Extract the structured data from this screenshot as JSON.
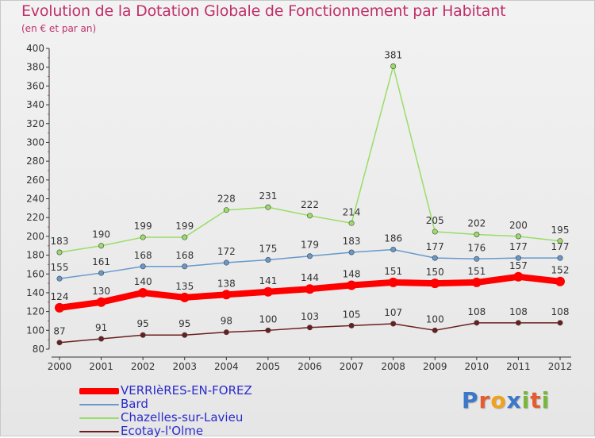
{
  "header": {
    "title": "Evolution de la Dotation Globale de Fonctionnement par Habitant",
    "subtitle": "(en € et par an)"
  },
  "logo": {
    "text": "Proxiti",
    "letters": [
      "P",
      "r",
      "o",
      "x",
      "i",
      "t",
      "i"
    ],
    "colors": [
      "#3b78c9",
      "#e35d2f",
      "#f0a21b",
      "#3b78c9",
      "#77b83a",
      "#e35d2f",
      "#77b83a"
    ]
  },
  "chart_data": {
    "type": "line",
    "title": "Evolution de la Dotation Globale de Fonctionnement par Habitant",
    "subtitle": "(en € et par an)",
    "xlabel": "",
    "ylabel": "",
    "x": [
      "2000",
      "2001",
      "2002",
      "2003",
      "2004",
      "2005",
      "2006",
      "2007",
      "2008",
      "2009",
      "2010",
      "2011",
      "2012"
    ],
    "ylim": [
      80,
      400
    ],
    "yticks": [
      80,
      100,
      120,
      140,
      160,
      180,
      200,
      220,
      240,
      260,
      280,
      300,
      320,
      340,
      360,
      380,
      400
    ],
    "grid": false,
    "legend_position": "bottom-left",
    "series": [
      {
        "name": "VERRIèRES-EN-FOREZ",
        "color": "#ff0000",
        "emphasis": true,
        "values": [
          124,
          130,
          140,
          135,
          138,
          141,
          144,
          148,
          151,
          150,
          151,
          157,
          152
        ]
      },
      {
        "name": "Bard",
        "color": "#6699cc",
        "values": [
          155,
          161,
          168,
          168,
          172,
          175,
          179,
          183,
          186,
          177,
          176,
          177,
          177
        ]
      },
      {
        "name": "Chazelles-sur-Lavieu",
        "color": "#99dd66",
        "values": [
          183,
          190,
          199,
          199,
          228,
          231,
          222,
          214,
          381,
          205,
          202,
          200,
          195
        ]
      },
      {
        "name": "Ecotay-l'Olme",
        "color": "#6b1e1e",
        "values": [
          87,
          91,
          95,
          95,
          98,
          100,
          103,
          105,
          107,
          100,
          108,
          108,
          108
        ]
      }
    ]
  }
}
